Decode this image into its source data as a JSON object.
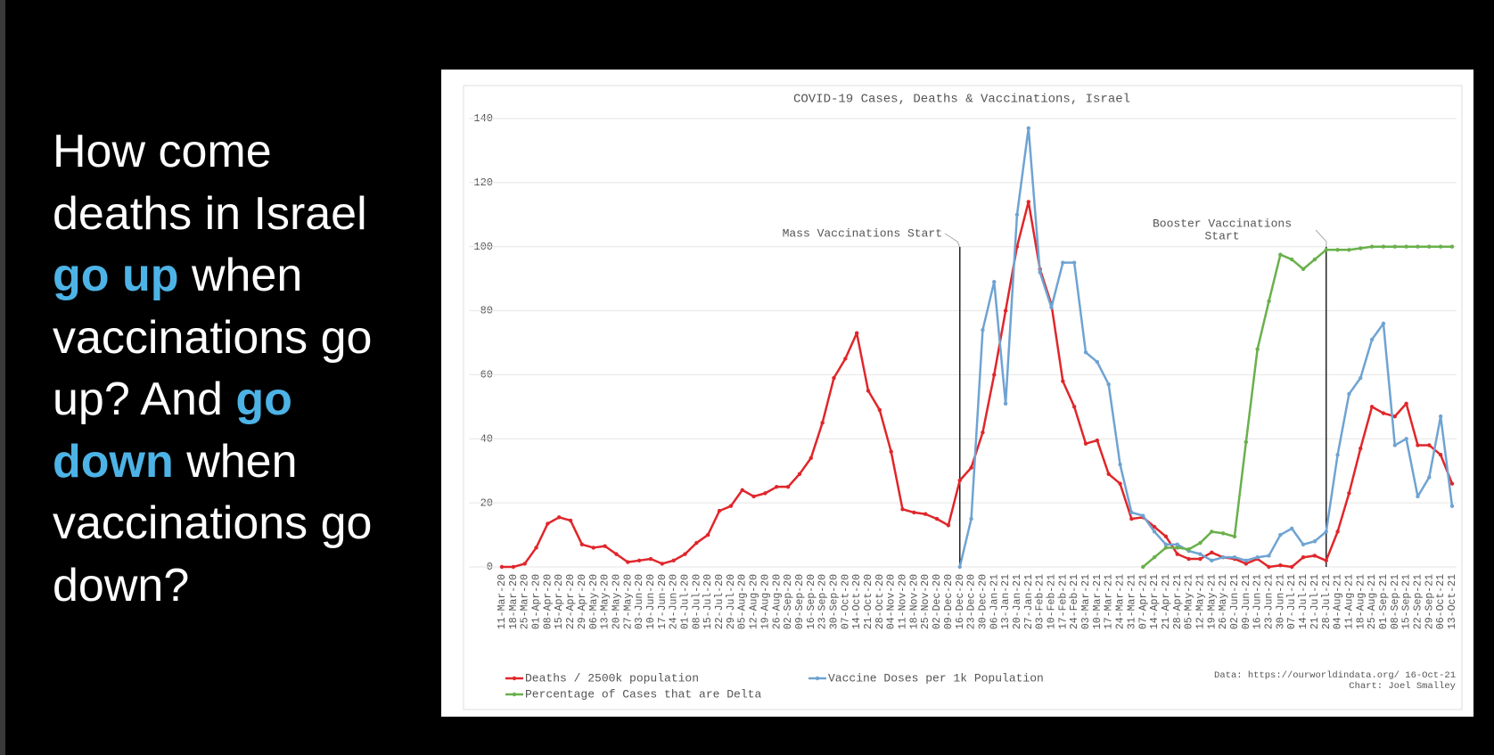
{
  "slide": {
    "lines": [
      [
        {
          "text": "How come",
          "highlight": false
        }
      ],
      [
        {
          "text": "deaths in Israel",
          "highlight": false
        }
      ],
      [
        {
          "text": "go up",
          "highlight": true
        },
        {
          "text": " when",
          "highlight": false
        }
      ],
      [
        {
          "text": "vaccinations go",
          "highlight": false
        }
      ],
      [
        {
          "text": "up? And ",
          "highlight": false
        },
        {
          "text": "go",
          "highlight": true
        }
      ],
      [
        {
          "text": "down",
          "highlight": true
        },
        {
          "text": " when",
          "highlight": false
        }
      ],
      [
        {
          "text": "vaccinations go",
          "highlight": false
        }
      ],
      [
        {
          "text": "down?",
          "highlight": false
        }
      ]
    ]
  },
  "chart_data": {
    "type": "line",
    "title": "COVID-19 Cases, Deaths & Vaccinations, Israel",
    "categories": [
      "11-Mar-20",
      "18-Mar-20",
      "25-Mar-20",
      "01-Apr-20",
      "08-Apr-20",
      "15-Apr-20",
      "22-Apr-20",
      "29-Apr-20",
      "06-May-20",
      "13-May-20",
      "20-May-20",
      "27-May-20",
      "03-Jun-20",
      "10-Jun-20",
      "17-Jun-20",
      "24-Jun-20",
      "01-Jul-20",
      "08-Jul-20",
      "15-Jul-20",
      "22-Jul-20",
      "29-Jul-20",
      "05-Aug-20",
      "12-Aug-20",
      "19-Aug-20",
      "26-Aug-20",
      "02-Sep-20",
      "09-Sep-20",
      "16-Sep-20",
      "23-Sep-20",
      "30-Sep-20",
      "07-Oct-20",
      "14-Oct-20",
      "21-Oct-20",
      "28-Oct-20",
      "04-Nov-20",
      "11-Nov-20",
      "18-Nov-20",
      "25-Nov-20",
      "02-Dec-20",
      "09-Dec-20",
      "16-Dec-20",
      "23-Dec-20",
      "30-Dec-20",
      "06-Jan-21",
      "13-Jan-21",
      "20-Jan-21",
      "27-Jan-21",
      "03-Feb-21",
      "10-Feb-21",
      "17-Feb-21",
      "24-Feb-21",
      "03-Mar-21",
      "10-Mar-21",
      "17-Mar-21",
      "24-Mar-21",
      "31-Mar-21",
      "07-Apr-21",
      "14-Apr-21",
      "21-Apr-21",
      "28-Apr-21",
      "05-May-21",
      "12-May-21",
      "19-May-21",
      "26-May-21",
      "02-Jun-21",
      "09-Jun-21",
      "16-Jun-21",
      "23-Jun-21",
      "30-Jun-21",
      "07-Jul-21",
      "14-Jul-21",
      "21-Jul-21",
      "28-Jul-21",
      "04-Aug-21",
      "11-Aug-21",
      "18-Aug-21",
      "25-Aug-21",
      "01-Sep-21",
      "08-Sep-21",
      "15-Sep-21",
      "22-Sep-21",
      "29-Sep-21",
      "06-Oct-21",
      "13-Oct-21"
    ],
    "series": [
      {
        "name": "Deaths / 2500k population",
        "color": "#e0262a",
        "values": [
          0,
          0,
          1,
          6,
          13.5,
          15.5,
          14.5,
          7,
          6,
          6.5,
          4,
          1.5,
          2,
          2.5,
          1,
          2,
          4,
          7.5,
          10,
          17.5,
          19,
          24,
          22,
          23,
          25,
          25,
          29,
          34,
          45,
          59,
          65,
          73,
          55,
          49,
          36,
          18,
          17,
          16.5,
          15,
          13,
          27,
          31,
          42,
          60,
          80,
          100,
          114,
          93,
          82,
          58,
          50,
          38.5,
          39.5,
          29,
          26,
          15,
          15.5,
          12.5,
          9.5,
          4,
          2.5,
          2.5,
          4.5,
          3,
          2.5,
          1,
          2.5,
          0,
          0.5,
          0,
          3,
          3.5,
          2,
          11,
          23,
          37,
          50,
          48,
          47,
          51,
          38,
          38,
          35,
          26
        ]
      },
      {
        "name": "Vaccine Doses per 1k Population",
        "color": "#6fa3d2",
        "values": [
          null,
          null,
          null,
          null,
          null,
          null,
          null,
          null,
          null,
          null,
          null,
          null,
          null,
          null,
          null,
          null,
          null,
          null,
          null,
          null,
          null,
          null,
          null,
          null,
          null,
          null,
          null,
          null,
          null,
          null,
          null,
          null,
          null,
          null,
          null,
          null,
          null,
          null,
          null,
          null,
          0,
          15,
          74,
          89,
          51,
          110,
          137,
          92,
          81,
          95,
          95,
          67,
          64,
          57,
          32,
          17,
          16,
          11,
          7,
          7,
          5,
          4,
          2,
          3,
          3,
          2,
          3,
          3.5,
          10,
          12,
          7,
          8,
          11,
          35,
          54,
          59,
          71,
          76,
          38,
          40,
          22,
          28,
          47,
          19
        ]
      },
      {
        "name": "Percentage of Cases that are Delta",
        "color": "#6ab04c",
        "values": [
          null,
          null,
          null,
          null,
          null,
          null,
          null,
          null,
          null,
          null,
          null,
          null,
          null,
          null,
          null,
          null,
          null,
          null,
          null,
          null,
          null,
          null,
          null,
          null,
          null,
          null,
          null,
          null,
          null,
          null,
          null,
          null,
          null,
          null,
          null,
          null,
          null,
          null,
          null,
          null,
          null,
          null,
          null,
          null,
          null,
          null,
          null,
          null,
          null,
          null,
          null,
          null,
          null,
          null,
          null,
          null,
          0,
          3,
          6,
          6,
          5.5,
          7.5,
          11,
          10.5,
          9.5,
          39,
          68,
          83,
          97.5,
          96,
          93,
          96,
          99,
          99,
          99,
          99.5,
          100,
          100,
          100,
          100,
          100,
          100,
          100,
          100
        ]
      }
    ],
    "ylim": [
      0,
      140
    ],
    "yticks": [
      0,
      20,
      40,
      60,
      80,
      100,
      120,
      140
    ],
    "grid": true,
    "legend": "bottom-left",
    "annotations": [
      {
        "x": "16-Dec-20",
        "lines": [
          "Mass Vaccinations Start"
        ]
      },
      {
        "x": "28-Jul-21",
        "lines": [
          "Booster Vaccinations",
          "Start"
        ]
      }
    ],
    "source": [
      "Data: https://ourworldindata.org/ 16-Oct-21",
      "Chart: Joel Smalley"
    ]
  }
}
